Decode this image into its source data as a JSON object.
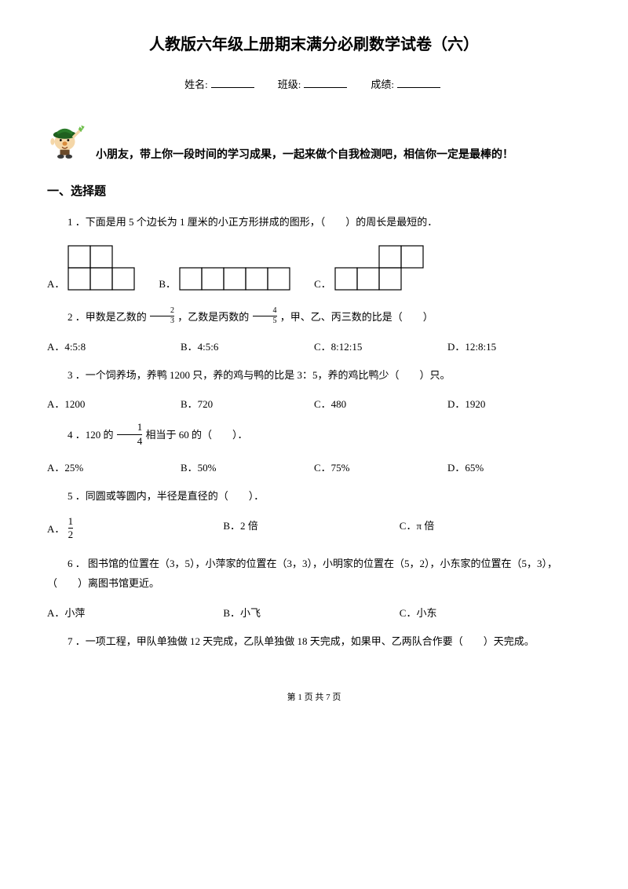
{
  "title": "人教版六年级上册期末满分必刷数学试卷（六）",
  "info": {
    "name_label": "姓名:",
    "class_label": "班级:",
    "score_label": "成绩:"
  },
  "intro": "小朋友，带上你一段时间的学习成果，一起来做个自我检测吧，相信你一定是最棒的！",
  "section1_heading": "一、选择题",
  "q1": {
    "text": "1 ．下面是用 5 个边长为 1 厘米的小正方形拼成的图形，（　　）的周长是最短的．",
    "labelA": "A．",
    "labelB": "B．",
    "labelC": "C．",
    "figA": {
      "type": "grid-shape",
      "cell": 28,
      "stroke": "#000000",
      "cells": [
        [
          0,
          0
        ],
        [
          1,
          0
        ],
        [
          0,
          1
        ],
        [
          1,
          1
        ],
        [
          2,
          1
        ]
      ]
    },
    "figB": {
      "type": "grid-shape",
      "cell": 28,
      "stroke": "#000000",
      "cells": [
        [
          0,
          0
        ],
        [
          1,
          0
        ],
        [
          2,
          0
        ],
        [
          3,
          0
        ],
        [
          4,
          0
        ]
      ]
    },
    "figC": {
      "type": "grid-shape",
      "cell": 28,
      "stroke": "#000000",
      "cells": [
        [
          0,
          1
        ],
        [
          1,
          1
        ],
        [
          2,
          1
        ],
        [
          2,
          0
        ],
        [
          3,
          0
        ]
      ]
    }
  },
  "q2": {
    "pre": "2 ．甲数是乙数的",
    "frac1_num": "2",
    "frac1_den": "3",
    "mid": "，乙数是丙数的",
    "frac2_num": "4",
    "frac2_den": "5",
    "post": "，甲、乙、丙三数的比是（　　）",
    "optA": "A．4:5:8",
    "optB": "B．4:5:6",
    "optC": "C．8:12:15",
    "optD": "D．12:8:15"
  },
  "q3": {
    "text": "3 ．一个饲养场，养鸭 1200 只，养的鸡与鸭的比是 3：5，养的鸡比鸭少（　　）只。",
    "optA": "A．1200",
    "optB": "B．720",
    "optC": "C．480",
    "optD": "D．1920"
  },
  "q4": {
    "pre": "4 ．120 的",
    "frac_num": "1",
    "frac_den": "4",
    "post": "相当于 60 的（　　）．",
    "optA": "A．25%",
    "optB": "B．50%",
    "optC": "C．75%",
    "optD": "D．65%"
  },
  "q5": {
    "text": "5 ．同圆或等圆内，半径是直径的（　　）．",
    "optA_pre": "A．",
    "optA_frac_num": "1",
    "optA_frac_den": "2",
    "optB": "B．2 倍",
    "optC": "C．π 倍"
  },
  "q6": {
    "text": "6 ． 图书馆的位置在（3，5），小萍家的位置在（3，3），小明家的位置在（5，2），小东家的位置在（5，3），（　　）离图书馆更近。",
    "optA": "A．小萍",
    "optB": "B．小飞",
    "optC": "C．小东"
  },
  "q7": {
    "text": "7 ．一项工程，甲队单独做 12 天完成，乙队单独做 18 天完成，如果甲、乙两队合作要（　　）天完成。"
  },
  "footer": "第 1 页 共 7 页",
  "mascot": {
    "cap_color": "#2a7a2a",
    "cap_brim": "#1f5f1f",
    "face_color": "#f5d7a8",
    "nose_color": "#d88a3a",
    "mouth_color": "#8a4a20",
    "hand_leaf": "#6fbf4d",
    "pants_color": "#6a4a2a",
    "shoe_color": "#3a3a3a"
  }
}
